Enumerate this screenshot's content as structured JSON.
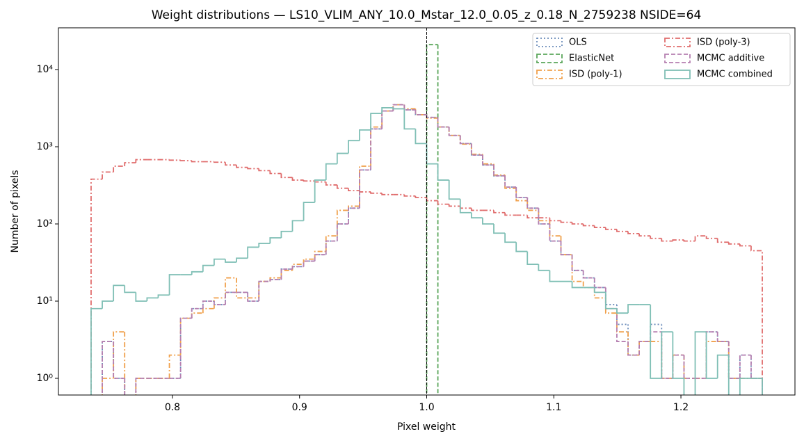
{
  "chart_data": {
    "type": "histogram",
    "title": "Weight distributions — LS10_VLIM_ANY_10.0_Mstar_12.0_0.05_z_0.18_N_2759238  NSIDE=64",
    "xlabel": "Pixel weight",
    "ylabel": "Number of pixels",
    "log_y": true,
    "legend": "upper right",
    "legend_columns": 2,
    "vline": 1.0,
    "xlim": [
      0.7103,
      1.2897
    ],
    "ylim": [
      0.608,
      34700
    ],
    "xticks": [
      0.8,
      0.9,
      {
        "value": 1,
        "label": "1.0"
      },
      1.1,
      1.2
    ],
    "yticks": [
      {
        "value": 1,
        "label": "10⁰"
      },
      {
        "value": 10,
        "label": "10¹"
      },
      {
        "value": 100,
        "label": "10²"
      },
      {
        "value": 1000,
        "label": "10³"
      },
      {
        "value": 10000,
        "label": "10⁴"
      }
    ],
    "bins": [
      0.736,
      0.7448,
      0.7536,
      0.7624,
      0.7712,
      0.78,
      0.7888,
      0.7976,
      0.8064,
      0.8152,
      0.824,
      0.8328,
      0.8416,
      0.8504,
      0.8592,
      0.868,
      0.8768,
      0.8856,
      0.8944,
      0.9032,
      0.912,
      0.9208,
      0.9296,
      0.9384,
      0.9472,
      0.956,
      0.9648,
      0.9736,
      0.9824,
      0.9912,
      1.0,
      1.0088,
      1.0176,
      1.0264,
      1.0352,
      1.044,
      1.0528,
      1.0616,
      1.0704,
      1.0792,
      1.088,
      1.0968,
      1.1056,
      1.1144,
      1.1232,
      1.132,
      1.1408,
      1.1496,
      1.1584,
      1.1672,
      1.176,
      1.1848,
      1.1936,
      1.2024,
      1.2112,
      1.22,
      1.2288,
      1.2376,
      1.2464,
      1.2552,
      1.264
    ],
    "series": [
      {
        "name": "OLS",
        "color": "#6b8cba",
        "linestyle": "dotted",
        "values": [
          0,
          3,
          1,
          0,
          1,
          1,
          1,
          1,
          6,
          8,
          10,
          9,
          13,
          13,
          10,
          18,
          19,
          26,
          28,
          33,
          40,
          60,
          100,
          160,
          500,
          1700,
          2900,
          3500,
          3000,
          2600,
          2400,
          1800,
          1400,
          1100,
          780,
          580,
          420,
          300,
          220,
          160,
          100,
          60,
          40,
          25,
          20,
          15,
          9,
          5,
          2,
          3,
          5,
          1,
          2,
          1,
          1,
          4,
          3,
          1,
          2,
          1
        ]
      },
      {
        "name": "ElasticNet",
        "color": "#5aa65a",
        "linestyle": "dashed",
        "values": [
          0,
          0,
          0,
          0,
          0,
          0,
          0,
          0,
          0,
          0,
          0,
          0,
          0,
          0,
          0,
          0,
          0,
          0,
          0,
          0,
          0,
          0,
          0,
          0,
          0,
          0,
          0,
          0,
          0,
          0,
          21000,
          0,
          0,
          0,
          0,
          0,
          0,
          0,
          0,
          0,
          0,
          0,
          0,
          0,
          0,
          0,
          0,
          0,
          0,
          0,
          0,
          0,
          0,
          0,
          0,
          0,
          0,
          0,
          0,
          0
        ]
      },
      {
        "name": "ISD (poly-1)",
        "color": "#f0a04b",
        "linestyle": "dashdot",
        "values": [
          0,
          1,
          4,
          0,
          1,
          1,
          1,
          2,
          6,
          7,
          8,
          11,
          20,
          11,
          11,
          18,
          20,
          25,
          30,
          35,
          44,
          70,
          150,
          170,
          560,
          1800,
          2900,
          3500,
          3100,
          2600,
          2350,
          1800,
          1400,
          1080,
          800,
          600,
          430,
          290,
          200,
          150,
          110,
          70,
          40,
          18,
          15,
          11,
          7,
          4,
          2,
          3,
          3,
          1,
          2,
          1,
          1,
          3,
          3,
          1,
          1,
          1
        ]
      },
      {
        "name": "ISD (poly-3)",
        "color": "#e06c6c",
        "linestyle": "dashdot",
        "values": [
          380,
          470,
          560,
          620,
          680,
          680,
          680,
          670,
          660,
          640,
          640,
          630,
          580,
          540,
          520,
          490,
          450,
          400,
          370,
          360,
          350,
          320,
          290,
          270,
          260,
          250,
          240,
          240,
          230,
          220,
          200,
          180,
          170,
          160,
          150,
          150,
          140,
          130,
          130,
          120,
          120,
          110,
          105,
          100,
          95,
          90,
          85,
          80,
          75,
          70,
          65,
          60,
          62,
          60,
          70,
          65,
          58,
          55,
          52,
          45
        ]
      },
      {
        "name": "MCMC additive",
        "color": "#b57fb0",
        "linestyle": "dashed",
        "values": [
          0,
          3,
          1,
          0,
          1,
          1,
          1,
          1,
          6,
          8,
          10,
          9,
          13,
          13,
          10,
          18,
          19,
          26,
          28,
          33,
          40,
          60,
          100,
          160,
          500,
          1700,
          2900,
          3500,
          3000,
          2600,
          2400,
          1800,
          1400,
          1100,
          780,
          580,
          420,
          300,
          220,
          160,
          100,
          60,
          40,
          25,
          20,
          15,
          8,
          3,
          2,
          3,
          4,
          1,
          2,
          1,
          1,
          4,
          3,
          1,
          2,
          1
        ]
      },
      {
        "name": "MCMC combined",
        "color": "#7fbfb5",
        "linestyle": "solid",
        "values": [
          8,
          10,
          16,
          13,
          10,
          11,
          12,
          22,
          22,
          24,
          29,
          35,
          32,
          36,
          50,
          56,
          66,
          80,
          110,
          190,
          370,
          600,
          820,
          1200,
          1650,
          2700,
          3200,
          3100,
          1700,
          1100,
          600,
          370,
          210,
          140,
          120,
          100,
          76,
          58,
          44,
          30,
          25,
          18,
          18,
          15,
          15,
          13,
          8,
          7,
          9,
          9,
          1,
          4,
          1,
          0,
          4,
          1,
          2,
          0,
          1,
          1
        ]
      }
    ]
  }
}
